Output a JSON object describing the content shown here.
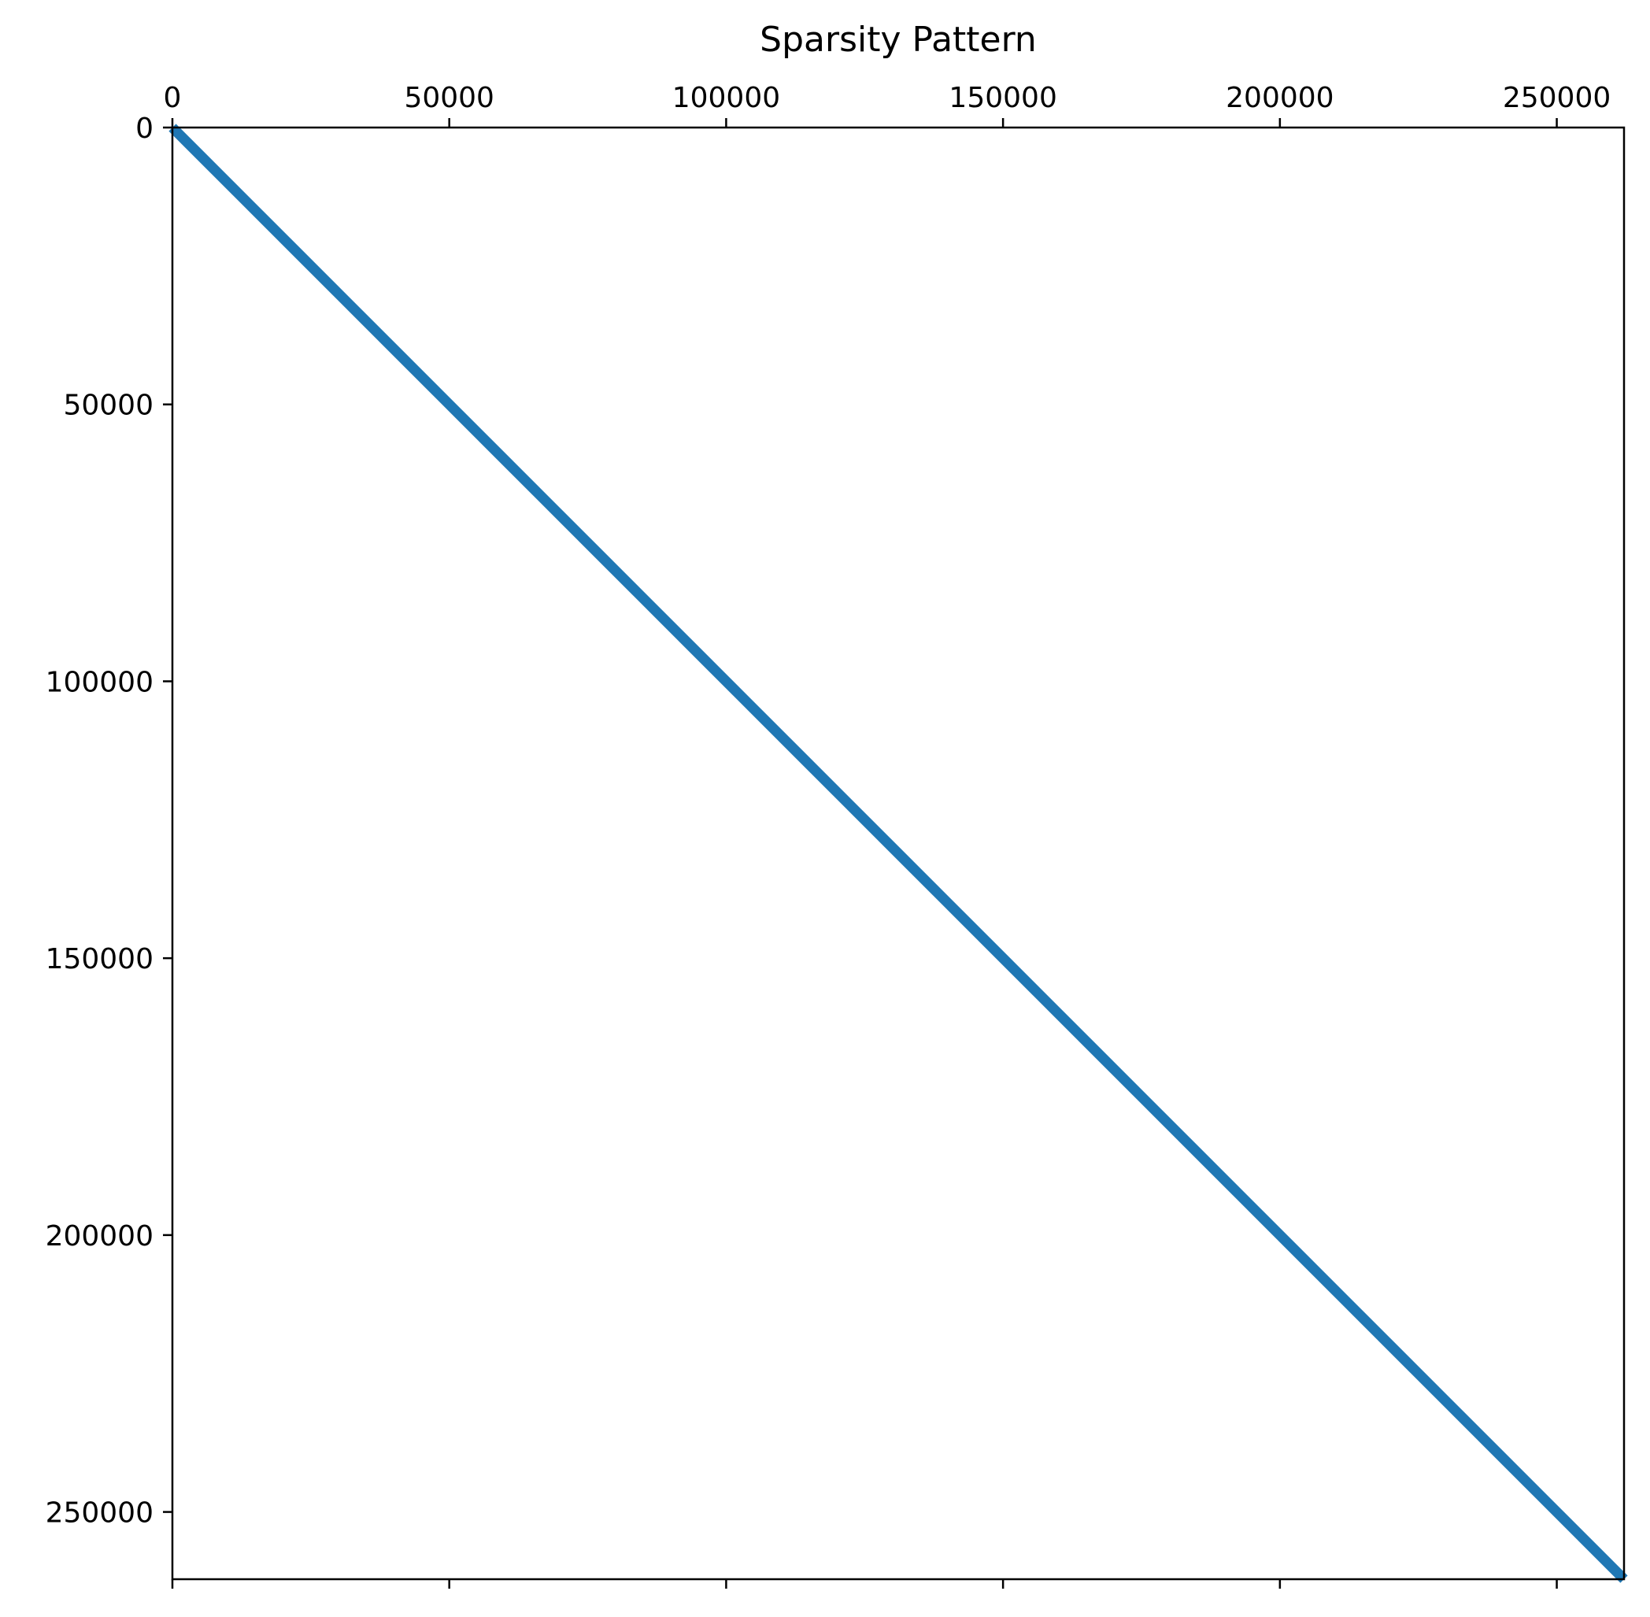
{
  "chart_data": {
    "type": "scatter",
    "title": "Sparsity Pattern",
    "xlabel": "",
    "ylabel": "",
    "xlim": [
      0,
      262144
    ],
    "ylim": [
      262144,
      0
    ],
    "x_axis_position": "top",
    "y_axis_inverted": true,
    "grid": false,
    "legend": "none",
    "x_ticks": [
      0,
      50000,
      100000,
      150000,
      200000,
      250000
    ],
    "x_tick_labels": [
      "0",
      "50000",
      "100000",
      "150000",
      "200000",
      "250000"
    ],
    "y_ticks": [
      0,
      50000,
      100000,
      150000,
      200000,
      250000
    ],
    "y_tick_labels": [
      "0",
      "50000",
      "100000",
      "150000",
      "200000",
      "250000"
    ],
    "series": [
      {
        "pattern": "diagonal",
        "color": "#1f77b4",
        "x": [
          0,
          262144
        ],
        "y": [
          0,
          262144
        ]
      }
    ]
  }
}
